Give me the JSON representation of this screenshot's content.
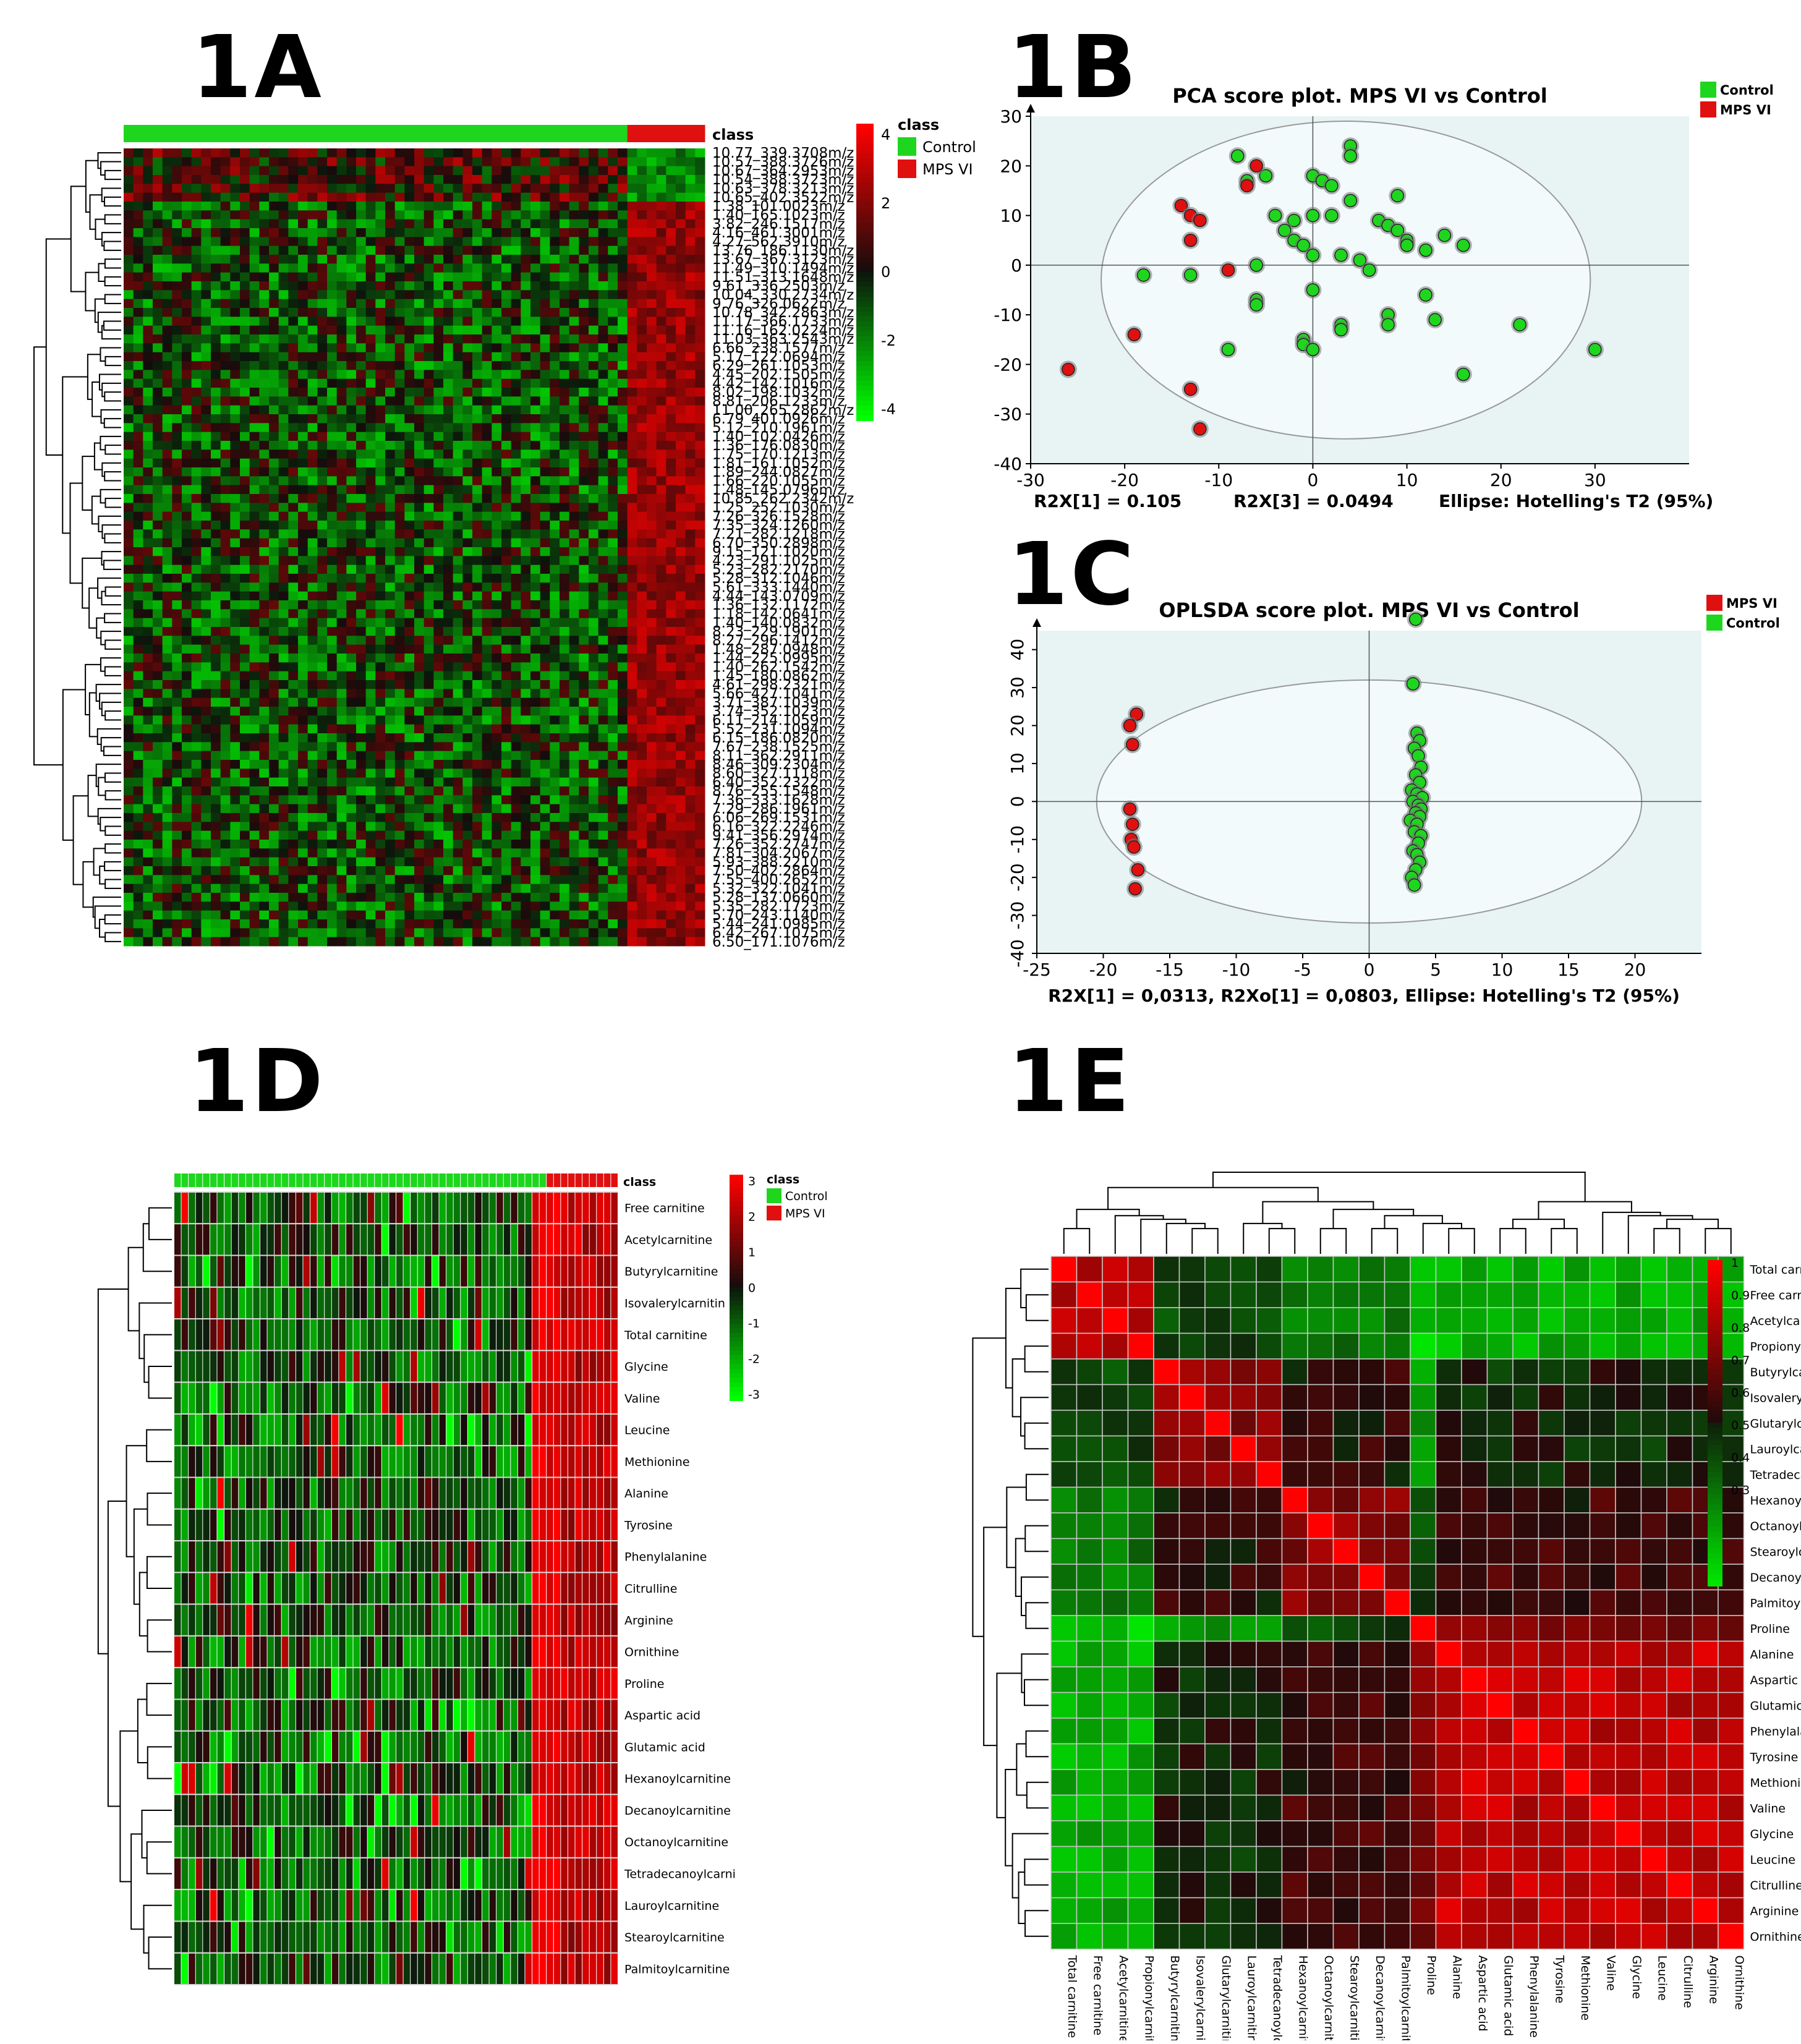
{
  "panel_labels": [
    "1A",
    "1B",
    "1C",
    "1D",
    "1E"
  ],
  "colors": {
    "control": "#1ed61e",
    "mps": "#e01010",
    "plot_bg": "#e8f3f3",
    "ellipse_fill": "#f2fafb"
  },
  "chart_data": [
    {
      "id": "1A",
      "type": "heatmap",
      "class_label": "class",
      "legend_title": "class",
      "legend_entries": [
        "Control",
        "MPS VI"
      ],
      "colorbar_ticks": [
        "4",
        "2",
        "0",
        "-2",
        "-4"
      ],
      "n_control": 52,
      "n_mps": 8,
      "row_labels": [
        "10.77_339.3708m/z",
        "10.57_388.3726m/z",
        "10.67_364.2953m/z",
        "10.54_388.3723m/z",
        "10.63_378.3213m/z",
        "10.65_402.3522m/z",
        "1.38_101.0023m/z",
        "1.40_165.1023m/z",
        "3.82_246.1517m/z",
        "4.16_461.3001m/z",
        "4.27_562.3910m/z",
        "13.76_186.1130m/z",
        "13.67_367.3123m/z",
        "11.49_310.1494m/z",
        "11.51_313.1648m/z",
        "9.61_336.2503m/z",
        "10.04_330.2734m/z",
        "9.76_326.0622m/z",
        "10.78_342.2863m/z",
        "11.17_366.1733m/z",
        "11.16_162.0224m/z",
        "11.03_363.2543m/z",
        "6.66_238.1577m/z",
        "5.17_122.0694m/z",
        "6.29_261.1053m/z",
        "4.45_202.1505m/z",
        "4.42_142.1016m/z",
        "8.02_198.1032m/z",
        "8.81_206.1233m/z",
        "11.00_265.2862m/z",
        "6.79_401.0926m/z",
        "5.12_210.1961m/z",
        "1.40_102.0426m/z",
        "1.36_176.0830m/z",
        "1.75_170.1213m/z",
        "1.81_161.1052m/z",
        "1.89_244.0827m/z",
        "1.66_220.1055m/z",
        "1.48_145.0796m/z",
        "10.85_262.2342m/z",
        "1.25_252.1030m/z",
        "7.26_326.1528m/z",
        "7.35_324.1260m/z",
        "7.21_282.1218m/z",
        "6.70_350.2898m/z",
        "9.15_121.1020m/z",
        "4.23_291.1025m/z",
        "5.23_282.2170m/z",
        "5.28_312.1046m/z",
        "5.61_333.1440m/z",
        "4.44_143.0709m/z",
        "1.36_132.1172m/z",
        "1.18_142.0641m/z",
        "1.40_140.0832m/z",
        "8.23_229.1901m/z",
        "8.27_296.1412m/z",
        "1.48_287.0948m/z",
        "1.44_225.0995m/z",
        "1.40_262.1542m/z",
        "1.45_180.0862m/z",
        "4.61_298.2321m/z",
        "5.66_427.1041m/z",
        "3.71_387.1039m/z",
        "3.74_352.1023m/z",
        "6.11_214.1059m/z",
        "5.52_231.1094m/z",
        "6.15_186.0820m/z",
        "7.67_238.1525m/z",
        "8.11_362.2911m/z",
        "8.46_309.2304m/z",
        "8.60_327.1118m/z",
        "6.40_352.2322m/z",
        "8.76_255.1548m/z",
        "7.36_333.1628m/z",
        "7.29_286.1961m/z",
        "6.06_269.1531m/z",
        "6.16_322.2246m/z",
        "9.41_356.2974m/z",
        "7.26_352.2747m/z",
        "7.81_304.2067m/z",
        "5.93_388.2210m/z",
        "7.50_402.2864m/z",
        "7.55_400.2652m/z",
        "5.32_322.1041m/z",
        "5.28_137.0660m/z",
        "5.35_282.1723m/z",
        "5.70_243.1140m/z",
        "5.44_241.0985m/z",
        "6.42_267.1075m/z",
        "6.50_171.1076m/z"
      ]
    },
    {
      "id": "1B",
      "type": "scatter",
      "title": "PCA score plot. MPS VI vs Control",
      "legend": [
        "Control",
        "MPS VI"
      ],
      "xlim": [
        -30,
        40
      ],
      "ylim": [
        -40,
        30
      ],
      "xticks": [
        -30,
        -20,
        -10,
        0,
        10,
        20,
        30
      ],
      "yticks": [
        30,
        20,
        10,
        0,
        -10,
        -20,
        -30,
        -40
      ],
      "ellipse_label": "Ellipse: Hotelling's T2 (95%)",
      "ellipse": {
        "cx": 3.5,
        "cy": -3,
        "rx": 26,
        "ry": 32
      },
      "footer": [
        "R2X[1] = 0.105",
        "R2X[3] = 0.0494",
        "Ellipse: Hotelling's T2 (95%)"
      ],
      "series": [
        {
          "name": "Control",
          "points": [
            [
              -8,
              22
            ],
            [
              4,
              24
            ],
            [
              4,
              22
            ],
            [
              -7,
              17
            ],
            [
              -5,
              18
            ],
            [
              0,
              18
            ],
            [
              1,
              17
            ],
            [
              2,
              16
            ],
            [
              9,
              14
            ],
            [
              -4,
              10
            ],
            [
              -2,
              9
            ],
            [
              -3,
              7
            ],
            [
              -2,
              5
            ],
            [
              -1,
              4
            ],
            [
              0,
              2
            ],
            [
              0,
              10
            ],
            [
              2,
              10
            ],
            [
              4,
              13
            ],
            [
              7,
              9
            ],
            [
              8,
              8
            ],
            [
              9,
              7
            ],
            [
              10,
              5
            ],
            [
              12,
              3
            ],
            [
              14,
              6
            ],
            [
              16,
              4
            ],
            [
              10,
              4
            ],
            [
              3,
              2
            ],
            [
              5,
              1
            ],
            [
              6,
              -1
            ],
            [
              -6,
              0
            ],
            [
              -18,
              -2
            ],
            [
              -13,
              -2
            ],
            [
              -6,
              -7
            ],
            [
              -6,
              -8
            ],
            [
              0,
              -5
            ],
            [
              -1,
              -15
            ],
            [
              -1,
              -16
            ],
            [
              0,
              -17
            ],
            [
              3,
              -12
            ],
            [
              3,
              -13
            ],
            [
              8,
              -10
            ],
            [
              8,
              -12
            ],
            [
              12,
              -6
            ],
            [
              13,
              -11
            ],
            [
              22,
              -12
            ],
            [
              30,
              -17
            ],
            [
              16,
              -22
            ],
            [
              -9,
              -17
            ]
          ]
        },
        {
          "name": "MPS VI",
          "points": [
            [
              -6,
              20
            ],
            [
              -7,
              16
            ],
            [
              -14,
              12
            ],
            [
              -13,
              10
            ],
            [
              -12,
              9
            ],
            [
              -13,
              5
            ],
            [
              -9,
              -1
            ],
            [
              -19,
              -14
            ],
            [
              -26,
              -21
            ],
            [
              -13,
              -25
            ],
            [
              -12,
              -33
            ]
          ]
        }
      ]
    },
    {
      "id": "1C",
      "type": "scatter",
      "title": "OPLSDA score plot. MPS VI vs Control",
      "legend": [
        "MPS VI",
        "Control"
      ],
      "xlim": [
        -25,
        25
      ],
      "ylim": [
        -40,
        45
      ],
      "xticks": [
        -25,
        -20,
        -15,
        -10,
        -5,
        0,
        5,
        10,
        15,
        20
      ],
      "yticks": [
        40,
        30,
        20,
        10,
        0,
        -10,
        -20,
        -30,
        -40
      ],
      "ellipse": {
        "cx": 0,
        "cy": 0,
        "rx": 20.5,
        "ry": 32
      },
      "footer": "R2X[1] = 0,0313, R2Xo[1] = 0,0803, Ellipse: Hotelling's T2 (95%)",
      "series": [
        {
          "name": "MPS VI",
          "points": [
            [
              -17.5,
              23
            ],
            [
              -18,
              20
            ],
            [
              -17.8,
              15
            ],
            [
              -18,
              -2
            ],
            [
              -17.8,
              -6
            ],
            [
              -17.9,
              -10
            ],
            [
              -17.7,
              -12
            ],
            [
              -17.4,
              -18
            ],
            [
              -17.6,
              -23
            ]
          ]
        },
        {
          "name": "Control",
          "points": [
            [
              3.5,
              48
            ],
            [
              3.3,
              31
            ],
            [
              3.6,
              18
            ],
            [
              3.8,
              16
            ],
            [
              3.4,
              14
            ],
            [
              3.7,
              12
            ],
            [
              3.9,
              9
            ],
            [
              3.5,
              7
            ],
            [
              3.8,
              5
            ],
            [
              3.2,
              3
            ],
            [
              3.6,
              2
            ],
            [
              4,
              1
            ],
            [
              3.3,
              0
            ],
            [
              3.7,
              -1
            ],
            [
              3.9,
              -2
            ],
            [
              3.5,
              -3
            ],
            [
              3.8,
              -4
            ],
            [
              3.1,
              -5
            ],
            [
              3.6,
              -6
            ],
            [
              3.4,
              -8
            ],
            [
              3.9,
              -9
            ],
            [
              3.7,
              -11
            ],
            [
              3.3,
              -13
            ],
            [
              3.6,
              -14
            ],
            [
              3.8,
              -16
            ],
            [
              3.5,
              -18
            ],
            [
              3.2,
              -20
            ],
            [
              3.4,
              -22
            ]
          ]
        }
      ]
    },
    {
      "id": "1D",
      "type": "heatmap",
      "class_label": "class",
      "legend_title": "class",
      "legend_entries": [
        "Control",
        "MPS VI"
      ],
      "colorbar_ticks": [
        "3",
        "2",
        "1",
        "0",
        "-1",
        "-2",
        "-3"
      ],
      "n_control": 52,
      "n_mps": 10,
      "row_labels": [
        "Free carnitine",
        "Acetylcarnitine",
        "Butyrylcarnitine",
        "Isovalerylcarnitin",
        "Total carnitine",
        "Glycine",
        "Valine",
        "Leucine",
        "Methionine",
        "Alanine",
        "Tyrosine",
        "Phenylalanine",
        "Citrulline",
        "Arginine",
        "Ornithine",
        "Proline",
        "Aspartic acid",
        "Glutamic acid",
        "Hexanoylcarnitine",
        "Decanoylcarnitine",
        "Octanoylcarnitine",
        "Tetradecanoylcarni",
        "Lauroylcarnitine",
        "Stearoylcarnitine",
        "Palmitoylcarnitine"
      ]
    },
    {
      "id": "1E",
      "type": "heatmap",
      "colorbar_ticks": [
        "1",
        "0.9",
        "0.8",
        "0.7",
        "0.6",
        "0.5",
        "0.4",
        "0.3"
      ],
      "labels": [
        "Total carnitine",
        "Free carnitine",
        "Acetylcarnitine",
        "Propionylcarnitine",
        "Butyrylcarnitine",
        "Isovalerylcarnitin",
        "Glutarylcarnitine",
        "Lauroylcarnitine",
        "Tetradecanoylcarni",
        "Hexanoylcarnitine",
        "Octanoylcarnitine",
        "Stearoylcarnitine",
        "Decanoylcarnitine",
        "Palmitoylcarnitine",
        "Proline",
        "Alanine",
        "Aspartic acid",
        "Glutamic acid",
        "Phenylalanine",
        "Tyrosine",
        "Methionine",
        "Valine",
        "Glycine",
        "Leucine",
        "Citrulline",
        "Arginine",
        "Ornithine"
      ]
    }
  ]
}
